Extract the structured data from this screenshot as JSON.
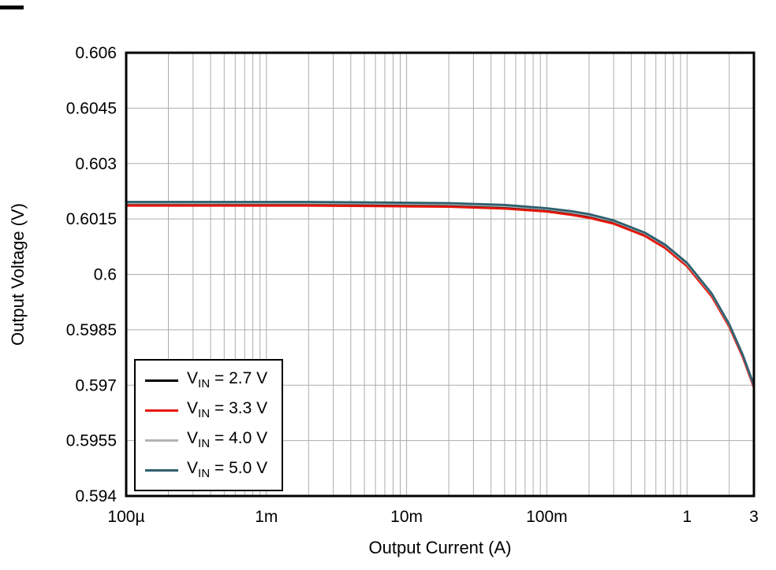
{
  "chart_data": {
    "type": "line",
    "title": "",
    "xlabel": "Output Current (A)",
    "ylabel": "Output Voltage (V)",
    "xscale": "log",
    "xlim": [
      0.0001,
      3
    ],
    "ylim": [
      0.594,
      0.606
    ],
    "x_ticks": [
      0.0001,
      0.001,
      0.01,
      0.1,
      1,
      3
    ],
    "x_ticklabels": [
      "100µ",
      "1m",
      "10m",
      "100m",
      "1",
      "3"
    ],
    "y_ticks": [
      0.594,
      0.5955,
      0.597,
      0.5985,
      0.6,
      0.6015,
      0.603,
      0.6045,
      0.606
    ],
    "y_ticklabels": [
      "0.594",
      "0.5955",
      "0.597",
      "0.5985",
      "0.6",
      "0.6015",
      "0.603",
      "0.6045",
      "0.606"
    ],
    "grid": true,
    "legend_position": "lower-left",
    "x": [
      0.0001,
      0.0002,
      0.0005,
      0.001,
      0.002,
      0.005,
      0.01,
      0.02,
      0.05,
      0.1,
      0.15,
      0.2,
      0.3,
      0.5,
      0.7,
      1,
      1.5,
      2,
      2.5,
      3
    ],
    "series": [
      {
        "name": "VIN = 2.7 V",
        "label_base": "V",
        "label_sub": "IN",
        "label_rest": " = 2.7 V",
        "color": "#000000",
        "values": [
          0.6019,
          0.6019,
          0.6019,
          0.6019,
          0.6019,
          0.60189,
          0.60188,
          0.60187,
          0.60182,
          0.60174,
          0.60165,
          0.60157,
          0.60141,
          0.60108,
          0.60075,
          0.60025,
          0.59943,
          0.5986,
          0.59778,
          0.59695
        ]
      },
      {
        "name": "VIN = 3.3 V",
        "label_base": "V",
        "label_sub": "IN",
        "label_rest": " = 3.3 V",
        "color": "#e8150b",
        "values": [
          0.60186,
          0.60186,
          0.60186,
          0.60186,
          0.60186,
          0.60185,
          0.60184,
          0.60183,
          0.60178,
          0.6017,
          0.60161,
          0.60153,
          0.60137,
          0.60104,
          0.60071,
          0.60022,
          0.5994,
          0.59858,
          0.59776,
          0.59694
        ]
      },
      {
        "name": "VIN = 4.0 V",
        "label_base": "V",
        "label_sub": "IN",
        "label_rest": " = 4.0 V",
        "color": "#b3b3b3",
        "values": [
          0.60193,
          0.60193,
          0.60193,
          0.60193,
          0.60193,
          0.60192,
          0.60191,
          0.6019,
          0.60185,
          0.60177,
          0.60168,
          0.6016,
          0.60144,
          0.60111,
          0.60078,
          0.60028,
          0.59946,
          0.59863,
          0.59781,
          0.59698
        ]
      },
      {
        "name": "VIN = 5.0 V",
        "label_base": "V",
        "label_sub": "IN",
        "label_rest": " = 5.0 V",
        "color": "#2e5f6e",
        "values": [
          0.60196,
          0.60196,
          0.60196,
          0.60196,
          0.60196,
          0.60195,
          0.60194,
          0.60193,
          0.60188,
          0.60179,
          0.60171,
          0.60163,
          0.60146,
          0.60113,
          0.6008,
          0.60031,
          0.59948,
          0.59865,
          0.59782,
          0.597
        ]
      }
    ]
  },
  "styles": {
    "grid_color": "#adadad",
    "frame_color": "#000000",
    "background": "#ffffff",
    "text_color": "#000000"
  }
}
